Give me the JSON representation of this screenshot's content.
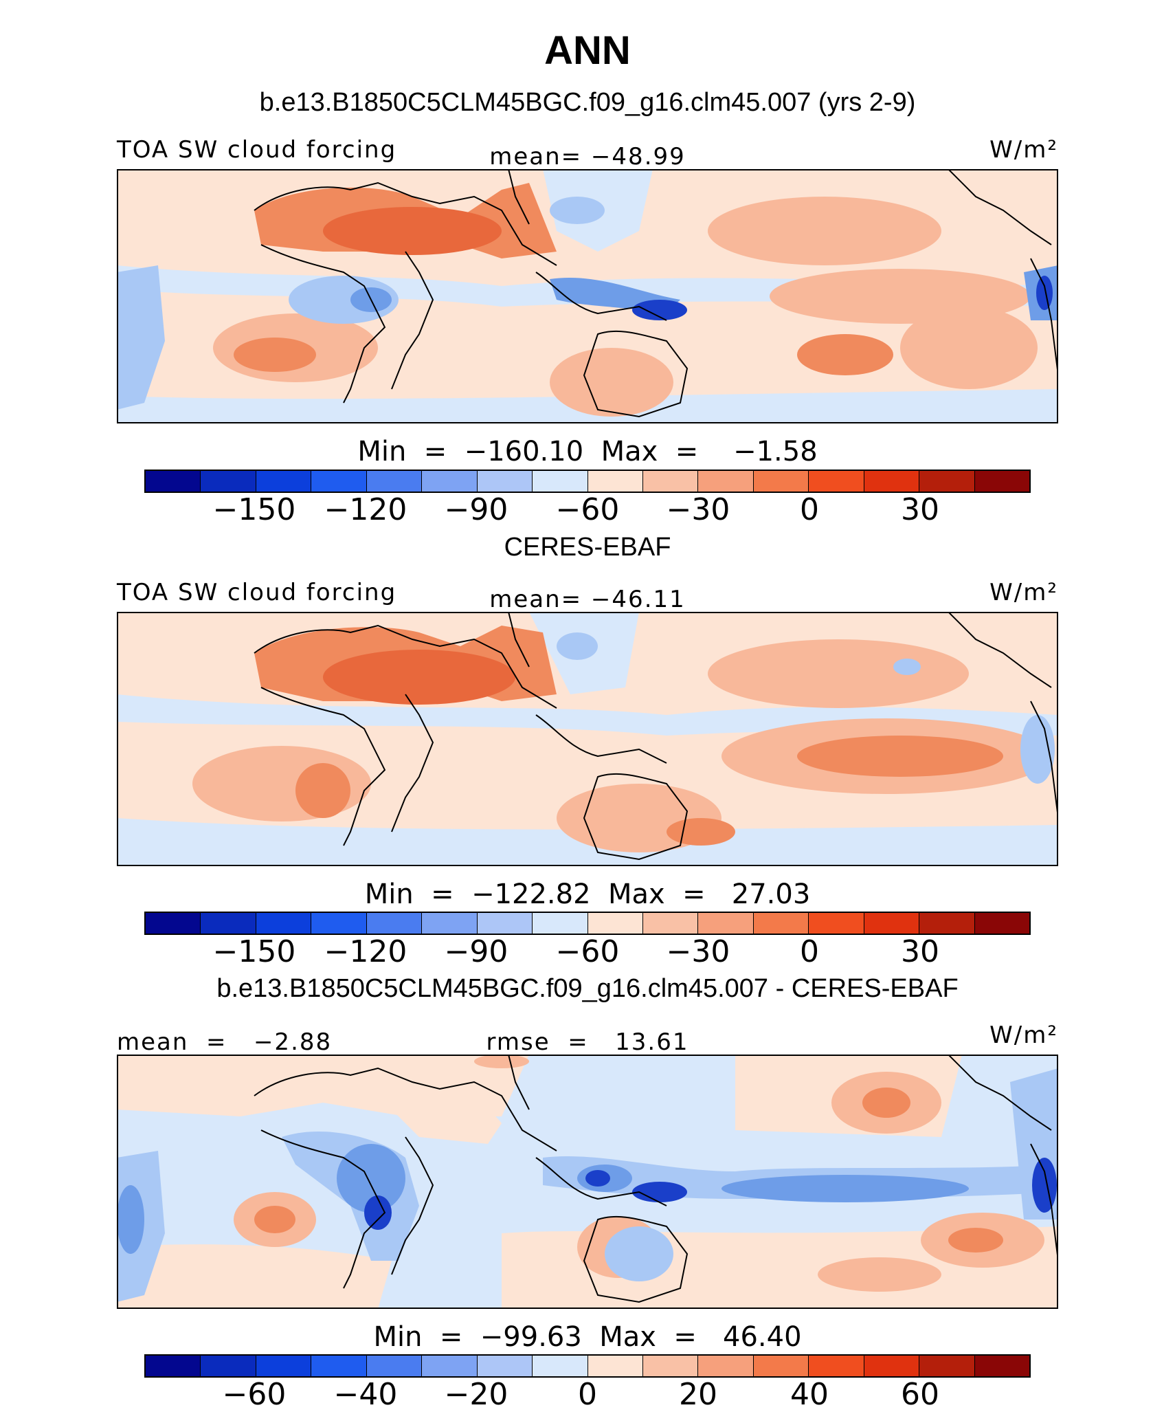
{
  "title": "ANN",
  "colors": {
    "map_fill_lightblue": "#d8e8fb",
    "map_fill_lightred": "#fde4d4",
    "map_fill_salmon": "#f8b89a",
    "map_fill_orange": "#f08a5d",
    "map_fill_deep": "#e8683c",
    "map_fill_blue": "#a9c8f5",
    "map_fill_midblue": "#6e9de8",
    "map_fill_darkblue": "#1a3fc9",
    "coast": "#000000"
  },
  "colorbar_colors": [
    "#03078f",
    "#0a2bbd",
    "#0c3fdc",
    "#1f5cef",
    "#4a7cf0",
    "#7ea3f3",
    "#adc6f7",
    "#d8e8fb",
    "#fde4d4",
    "#f9c1a6",
    "#f6a07c",
    "#f37a4a",
    "#f04e1f",
    "#e0320f",
    "#b41f0b",
    "#8a0606"
  ],
  "panels": [
    {
      "subtitle": "b.e13.B1850C5CLM45BGC.f09_g16.clm45.007 (yrs 2-9)",
      "left_label": "TOA SW cloud forcing",
      "center_label": "mean= −48.99",
      "units": "W/m²",
      "minmax": "Min  =  −160.10  Max  =    −1.58",
      "ticks": [
        "−150",
        "−120",
        "−90",
        "−60",
        "−30",
        "0",
        "30"
      ]
    },
    {
      "subtitle": "CERES-EBAF",
      "left_label": "TOA SW cloud forcing",
      "center_label": "mean= −46.11",
      "units": "W/m²",
      "minmax": "Min  =  −122.82  Max  =   27.03",
      "ticks": [
        "−150",
        "−120",
        "−90",
        "−60",
        "−30",
        "0",
        "30"
      ]
    },
    {
      "subtitle": "b.e13.B1850C5CLM45BGC.f09_g16.clm45.007 - CERES-EBAF",
      "left_label": "mean  =   −2.88",
      "center_label": "rmse  =   13.61",
      "units": "W/m²",
      "minmax": "Min  =  −99.63  Max  =   46.40",
      "ticks": [
        "−60",
        "−40",
        "−20",
        "0",
        "20",
        "40",
        "60"
      ]
    }
  ]
}
